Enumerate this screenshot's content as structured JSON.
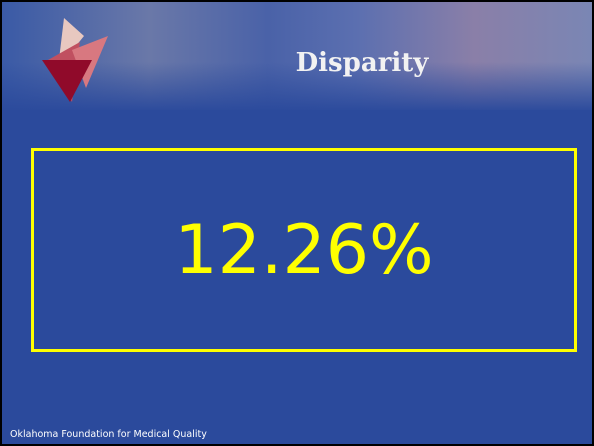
{
  "header": {
    "title": "Disparity"
  },
  "main": {
    "figure": "12.26%"
  },
  "footer": {
    "text": "Oklahoma Foundation for Medical Quality"
  }
}
